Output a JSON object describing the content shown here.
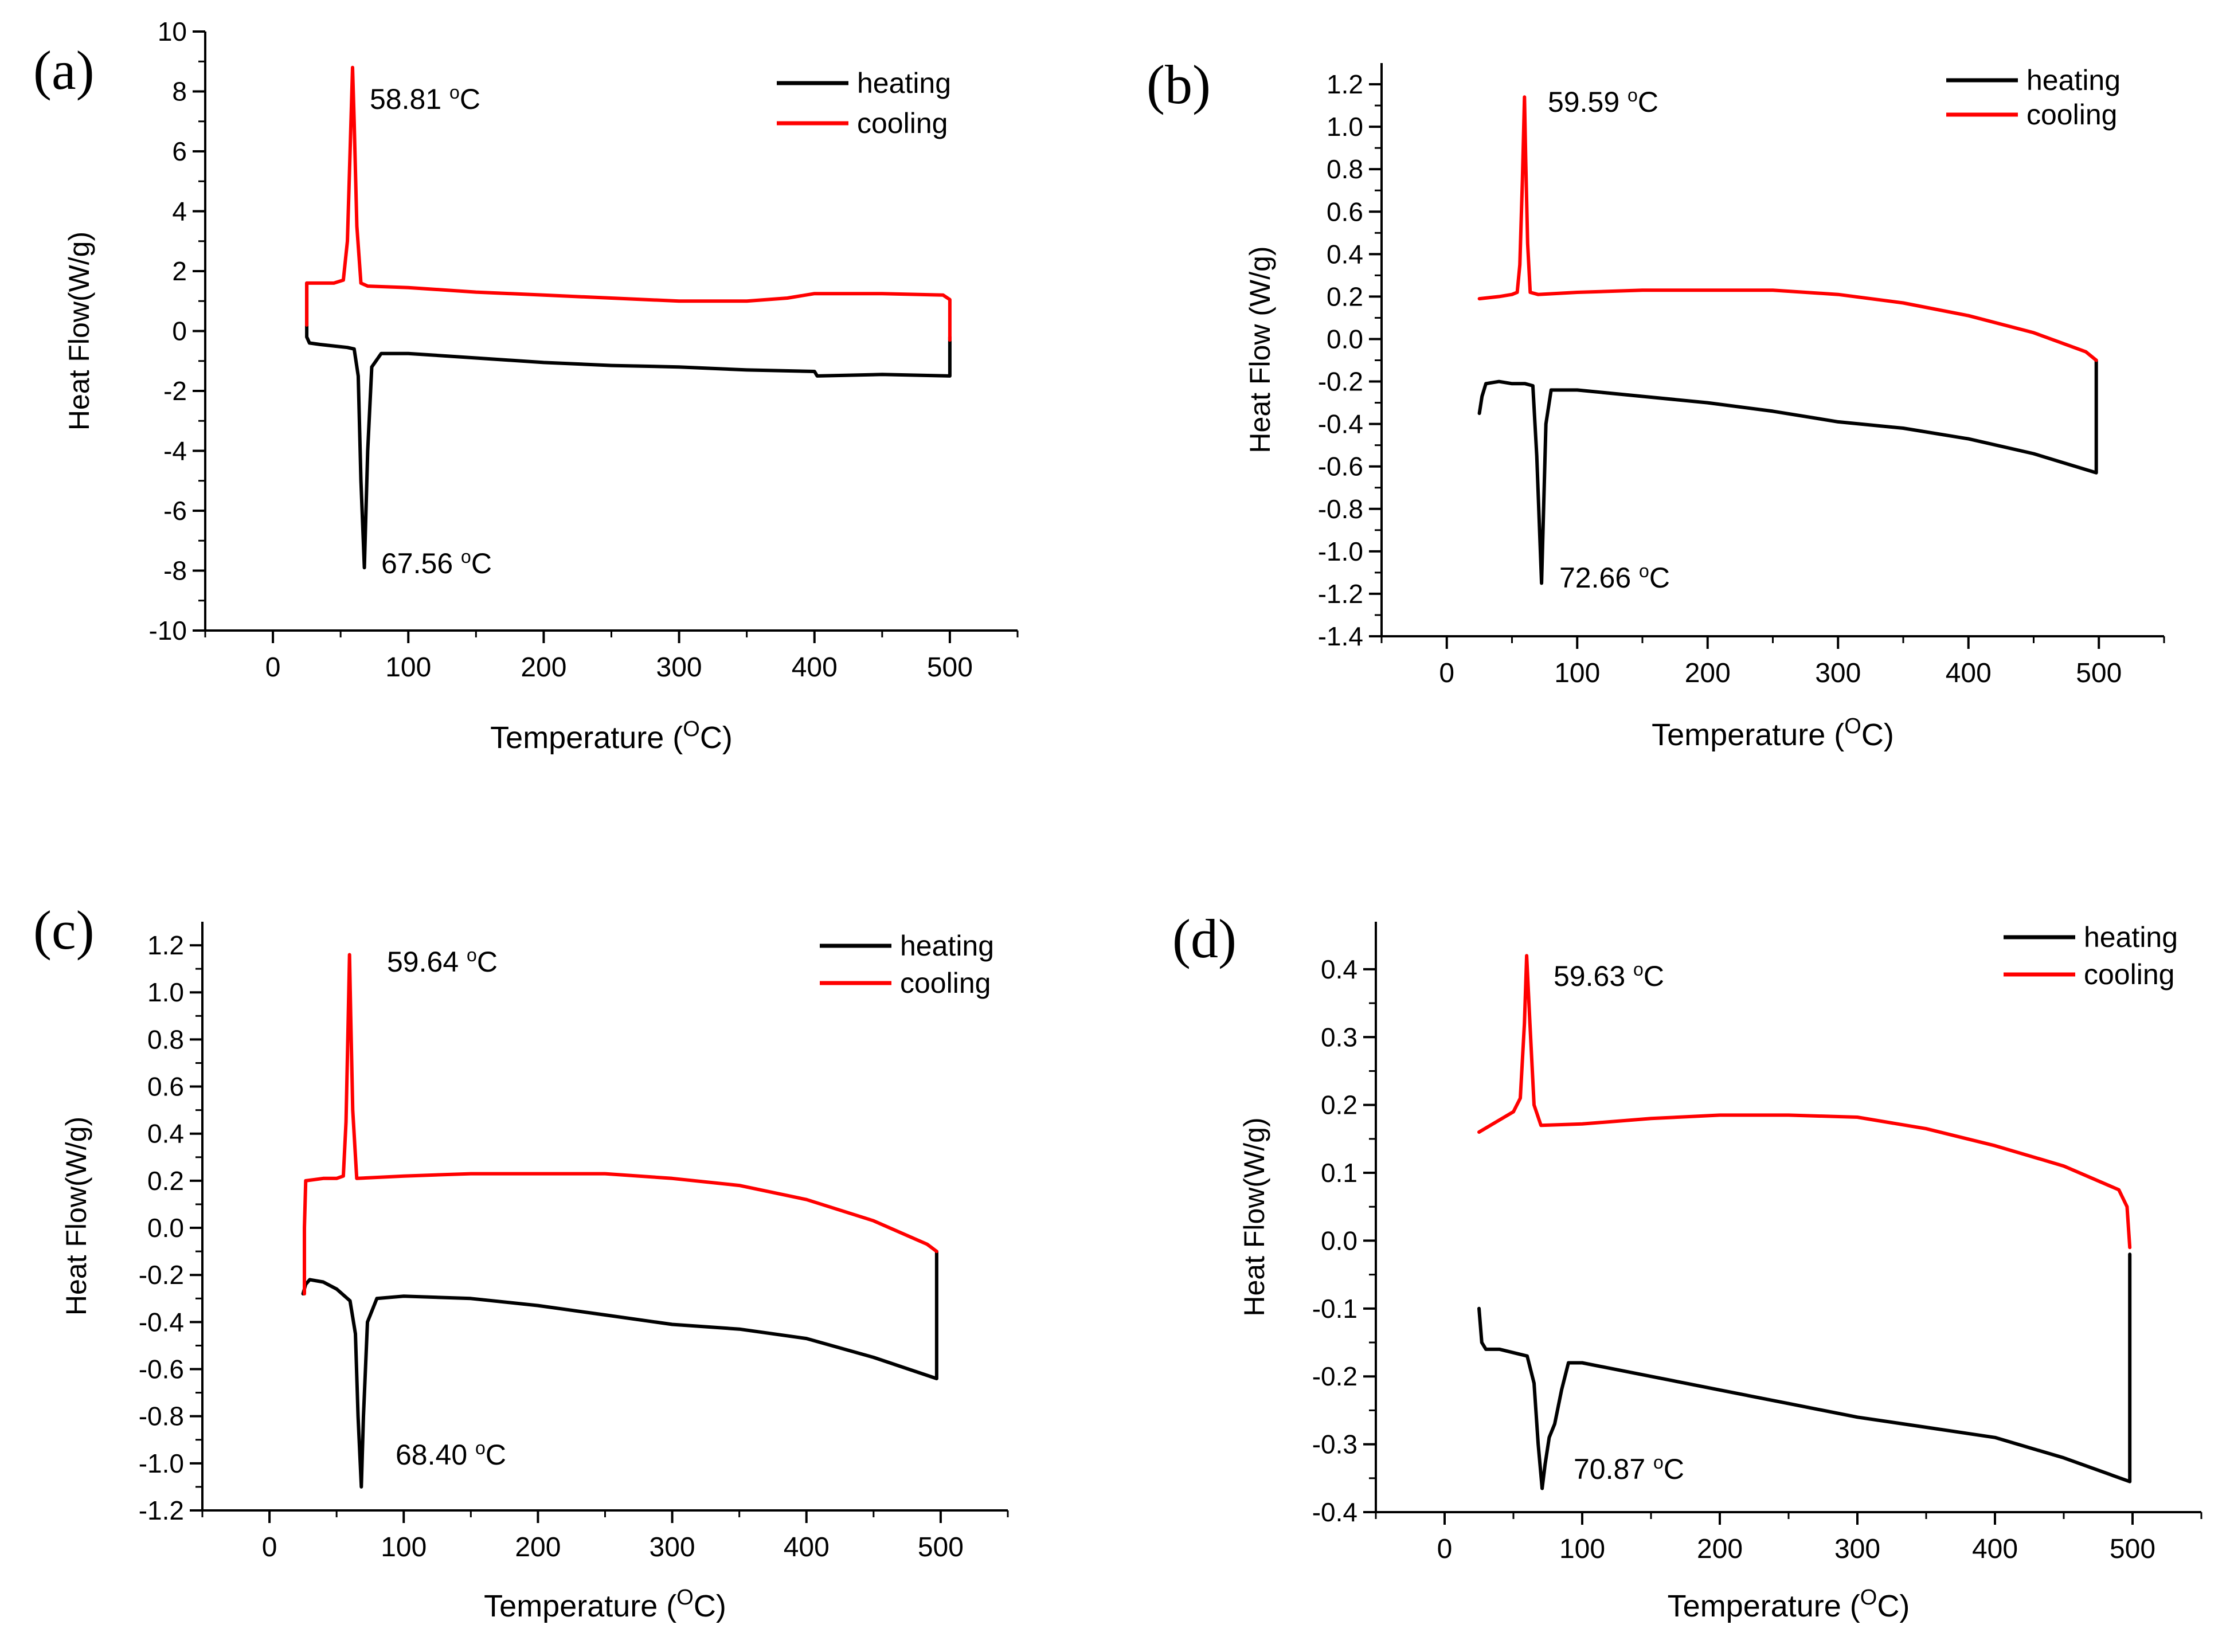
{
  "figure": {
    "background": "#ffffff",
    "axis_color": "#000000",
    "heating_color": "#000000",
    "cooling_color": "#ff0000"
  },
  "chart_data": [
    {
      "panel": "(a)",
      "type": "line",
      "xlabel_main": "Temperature (",
      "xlabel_sup": "O",
      "xlabel_end": "C)",
      "ylabel": "Heat Flow(W/g)",
      "xlim": [
        -50,
        550
      ],
      "ylim": [
        -10,
        10
      ],
      "xticks": [
        0,
        100,
        200,
        300,
        400,
        500
      ],
      "xtick_labels": [
        "0",
        "100",
        "200",
        "300",
        "400",
        "500"
      ],
      "yticks": [
        -10,
        -8,
        -6,
        -4,
        -2,
        0,
        2,
        4,
        6,
        8,
        10
      ],
      "ytick_labels": [
        "-10",
        "-8",
        "-6",
        "-4",
        "-2",
        "0",
        "2",
        "4",
        "6",
        "8",
        "10"
      ],
      "legend": [
        "heating",
        "cooling"
      ],
      "series": [
        {
          "name": "heating",
          "color": "#000000",
          "x": [
            25,
            25,
            27,
            35,
            45,
            55,
            60,
            63,
            65,
            67.56,
            70,
            73,
            80,
            100,
            150,
            200,
            250,
            300,
            350,
            400,
            402,
            450,
            500,
            500
          ],
          "y": [
            1.6,
            -0.2,
            -0.4,
            -0.45,
            -0.5,
            -0.55,
            -0.6,
            -1.5,
            -5,
            -7.9,
            -4,
            -1.2,
            -0.75,
            -0.75,
            -0.9,
            -1.05,
            -1.15,
            -1.2,
            -1.3,
            -1.35,
            -1.5,
            -1.45,
            -1.5,
            -0.2
          ]
        },
        {
          "name": "cooling",
          "color": "#ff0000",
          "x": [
            500,
            500,
            495,
            450,
            400,
            380,
            350,
            300,
            250,
            200,
            150,
            100,
            70,
            65,
            62,
            60,
            58.81,
            57,
            55,
            52,
            45,
            35,
            25,
            25
          ],
          "y": [
            -0.3,
            1.05,
            1.2,
            1.25,
            1.25,
            1.1,
            1.0,
            1.0,
            1.1,
            1.2,
            1.3,
            1.45,
            1.5,
            1.6,
            3.5,
            7.0,
            8.8,
            6.0,
            3.0,
            1.7,
            1.6,
            1.6,
            1.6,
            0.2
          ]
        }
      ],
      "annotations": [
        {
          "x": 58.81,
          "y": 8.8,
          "value": "58.81",
          "unit": "C"
        },
        {
          "x": 67.56,
          "y": -7.9,
          "value": "67.56",
          "unit": "C"
        }
      ]
    },
    {
      "panel": "(b)",
      "type": "line",
      "xlabel_main": "Temperature (",
      "xlabel_sup": "O",
      "xlabel_end": "C)",
      "ylabel": "Heat Flow (W/g)",
      "xlim": [
        -50,
        550
      ],
      "ylim": [
        -1.4,
        1.3
      ],
      "xticks": [
        0,
        100,
        200,
        300,
        400,
        500
      ],
      "xtick_labels": [
        "0",
        "100",
        "200",
        "300",
        "400",
        "500"
      ],
      "yticks": [
        -1.4,
        -1.2,
        -1.0,
        -0.8,
        -0.6,
        -0.4,
        -0.2,
        0.0,
        0.2,
        0.4,
        0.6,
        0.8,
        1.0,
        1.2
      ],
      "ytick_labels": [
        "-1.4",
        "-1.2",
        "-1.0",
        "-0.8",
        "-0.6",
        "-0.4",
        "-0.2",
        "0.0",
        "0.2",
        "0.4",
        "0.6",
        "0.8",
        "1.0",
        "1.2"
      ],
      "legend": [
        "heating",
        "cooling"
      ],
      "series": [
        {
          "name": "heating",
          "color": "#000000",
          "x": [
            25,
            27,
            30,
            40,
            50,
            60,
            66,
            69,
            72.66,
            76,
            80,
            100,
            150,
            200,
            250,
            300,
            350,
            400,
            450,
            498,
            498
          ],
          "y": [
            -0.35,
            -0.27,
            -0.21,
            -0.2,
            -0.21,
            -0.21,
            -0.22,
            -0.55,
            -1.15,
            -0.4,
            -0.24,
            -0.24,
            -0.27,
            -0.3,
            -0.34,
            -0.39,
            -0.42,
            -0.47,
            -0.54,
            -0.63,
            -0.1
          ]
        },
        {
          "name": "cooling",
          "color": "#ff0000",
          "x": [
            498,
            490,
            450,
            400,
            350,
            300,
            250,
            200,
            150,
            100,
            70,
            64,
            62,
            60.5,
            59.59,
            58,
            56,
            54,
            50,
            40,
            25
          ],
          "y": [
            -0.1,
            -0.06,
            0.03,
            0.11,
            0.17,
            0.21,
            0.23,
            0.23,
            0.23,
            0.22,
            0.21,
            0.22,
            0.45,
            0.85,
            1.14,
            0.75,
            0.35,
            0.22,
            0.21,
            0.2,
            0.19
          ]
        }
      ],
      "annotations": [
        {
          "x": 59.59,
          "y": 1.14,
          "value": "59.59",
          "unit": "C"
        },
        {
          "x": 72.66,
          "y": -1.15,
          "value": "72.66",
          "unit": "C"
        }
      ]
    },
    {
      "panel": "(c)",
      "type": "line",
      "xlabel_main": "Temperature (",
      "xlabel_sup": "O",
      "xlabel_end": "C)",
      "ylabel": "Heat Flow(W/g)",
      "xlim": [
        -50,
        550
      ],
      "ylim": [
        -1.2,
        1.3
      ],
      "xticks": [
        0,
        100,
        200,
        300,
        400,
        500
      ],
      "xtick_labels": [
        "0",
        "100",
        "200",
        "300",
        "400",
        "500"
      ],
      "yticks": [
        -1.2,
        -1.0,
        -0.8,
        -0.6,
        -0.4,
        -0.2,
        0.0,
        0.2,
        0.4,
        0.6,
        0.8,
        1.0,
        1.2
      ],
      "ytick_labels": [
        "-1.2",
        "-1.0",
        "-0.8",
        "-0.6",
        "-0.4",
        "-0.2",
        "0.0",
        "0.2",
        "0.4",
        "0.6",
        "0.8",
        "1.0",
        "1.2"
      ],
      "legend": [
        "heating",
        "cooling"
      ],
      "series": [
        {
          "name": "heating",
          "color": "#000000",
          "x": [
            25,
            27,
            30,
            40,
            50,
            60,
            64,
            66,
            68.4,
            70,
            73,
            80,
            100,
            150,
            200,
            250,
            300,
            350,
            400,
            450,
            497,
            497
          ],
          "y": [
            -0.28,
            -0.24,
            -0.22,
            -0.23,
            -0.26,
            -0.31,
            -0.45,
            -0.8,
            -1.1,
            -0.8,
            -0.4,
            -0.3,
            -0.29,
            -0.3,
            -0.33,
            -0.37,
            -0.41,
            -0.43,
            -0.47,
            -0.55,
            -0.64,
            -0.1
          ]
        },
        {
          "name": "cooling",
          "color": "#ff0000",
          "x": [
            497,
            490,
            450,
            400,
            350,
            300,
            250,
            200,
            150,
            100,
            65,
            62,
            60.5,
            59.64,
            58.5,
            57,
            55,
            50,
            40,
            27,
            26,
            26
          ],
          "y": [
            -0.1,
            -0.07,
            0.03,
            0.12,
            0.18,
            0.21,
            0.23,
            0.23,
            0.23,
            0.22,
            0.21,
            0.5,
            0.9,
            1.16,
            0.85,
            0.45,
            0.22,
            0.21,
            0.21,
            0.2,
            0.0,
            -0.28
          ]
        }
      ],
      "annotations": [
        {
          "x": 59.64,
          "y": 1.16,
          "value": "59.64",
          "unit": "C"
        },
        {
          "x": 68.4,
          "y": -1.1,
          "value": "68.40",
          "unit": "C"
        }
      ]
    },
    {
      "panel": "(d)",
      "type": "line",
      "xlabel_main": "Temperature (",
      "xlabel_sup": "O",
      "xlabel_end": "C)",
      "ylabel": "Heat Flow(W/g)",
      "xlim": [
        -50,
        550
      ],
      "ylim": [
        -0.4,
        0.47
      ],
      "xticks": [
        0,
        100,
        200,
        300,
        400,
        500
      ],
      "xtick_labels": [
        "0",
        "100",
        "200",
        "300",
        "400",
        "500"
      ],
      "yticks": [
        -0.4,
        -0.3,
        -0.2,
        -0.1,
        0.0,
        0.1,
        0.2,
        0.3,
        0.4
      ],
      "ytick_labels": [
        "-0.4",
        "-0.3",
        "-0.2",
        "-0.1",
        "0.0",
        "0.1",
        "0.2",
        "0.3",
        "0.4"
      ],
      "legend": [
        "heating",
        "cooling"
      ],
      "series": [
        {
          "name": "heating",
          "color": "#000000",
          "x": [
            25,
            27,
            30,
            40,
            50,
            60,
            65,
            68,
            70.87,
            73,
            76,
            80,
            85,
            90,
            100,
            150,
            200,
            250,
            300,
            350,
            400,
            450,
            498,
            498
          ],
          "y": [
            -0.1,
            -0.15,
            -0.16,
            -0.16,
            -0.165,
            -0.17,
            -0.21,
            -0.3,
            -0.365,
            -0.33,
            -0.29,
            -0.27,
            -0.22,
            -0.18,
            -0.18,
            -0.2,
            -0.22,
            -0.24,
            -0.26,
            -0.275,
            -0.29,
            -0.32,
            -0.355,
            -0.02
          ]
        },
        {
          "name": "cooling",
          "color": "#ff0000",
          "x": [
            498,
            496,
            490,
            450,
            400,
            350,
            300,
            250,
            200,
            150,
            100,
            70,
            65,
            62,
            59.63,
            58,
            55,
            50,
            40,
            25
          ],
          "y": [
            -0.01,
            0.05,
            0.075,
            0.11,
            0.14,
            0.165,
            0.182,
            0.185,
            0.185,
            0.18,
            0.172,
            0.17,
            0.2,
            0.32,
            0.42,
            0.32,
            0.21,
            0.19,
            0.178,
            0.16
          ]
        }
      ],
      "annotations": [
        {
          "x": 59.63,
          "y": 0.42,
          "value": "59.63",
          "unit": "C"
        },
        {
          "x": 70.87,
          "y": -0.365,
          "value": "70.87",
          "unit": "C"
        }
      ]
    }
  ]
}
